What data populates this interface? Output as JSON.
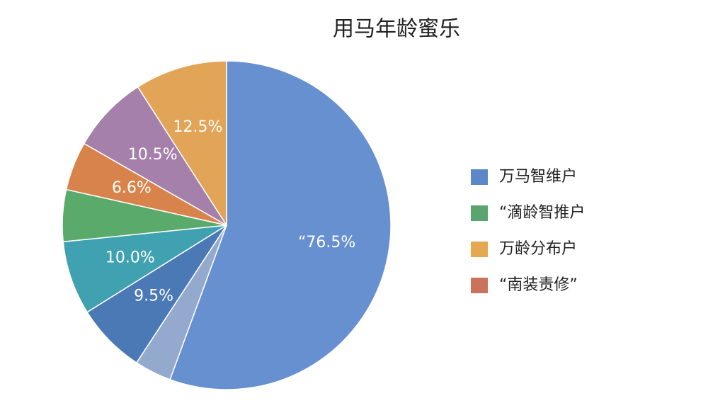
{
  "chart_data": {
    "type": "pie",
    "title": "用马年龄蜜乐",
    "values": [
      76.5,
      5,
      9.5,
      10.0,
      7,
      6.6,
      10.5,
      12.5
    ],
    "value_labels": [
      "“76.5%",
      null,
      "9.5%",
      "10.0%",
      null,
      "6.6%",
      "10.5%",
      "12.5%"
    ],
    "colors": [
      "#6790d1",
      "#93a9cd",
      "#4b79b6",
      "#40a1b0",
      "#5aab6b",
      "#d9834c",
      "#a480ab",
      "#e2a557"
    ],
    "legend": [
      {
        "name": "万马智维户",
        "color": "#5b87c9"
      },
      {
        "name": "“滴龄智推户",
        "color": "#5aa46f"
      },
      {
        "name": "万龄分布户",
        "color": "#e5a750"
      },
      {
        "name": "“南装责修”",
        "color": "#c9735a"
      }
    ]
  }
}
